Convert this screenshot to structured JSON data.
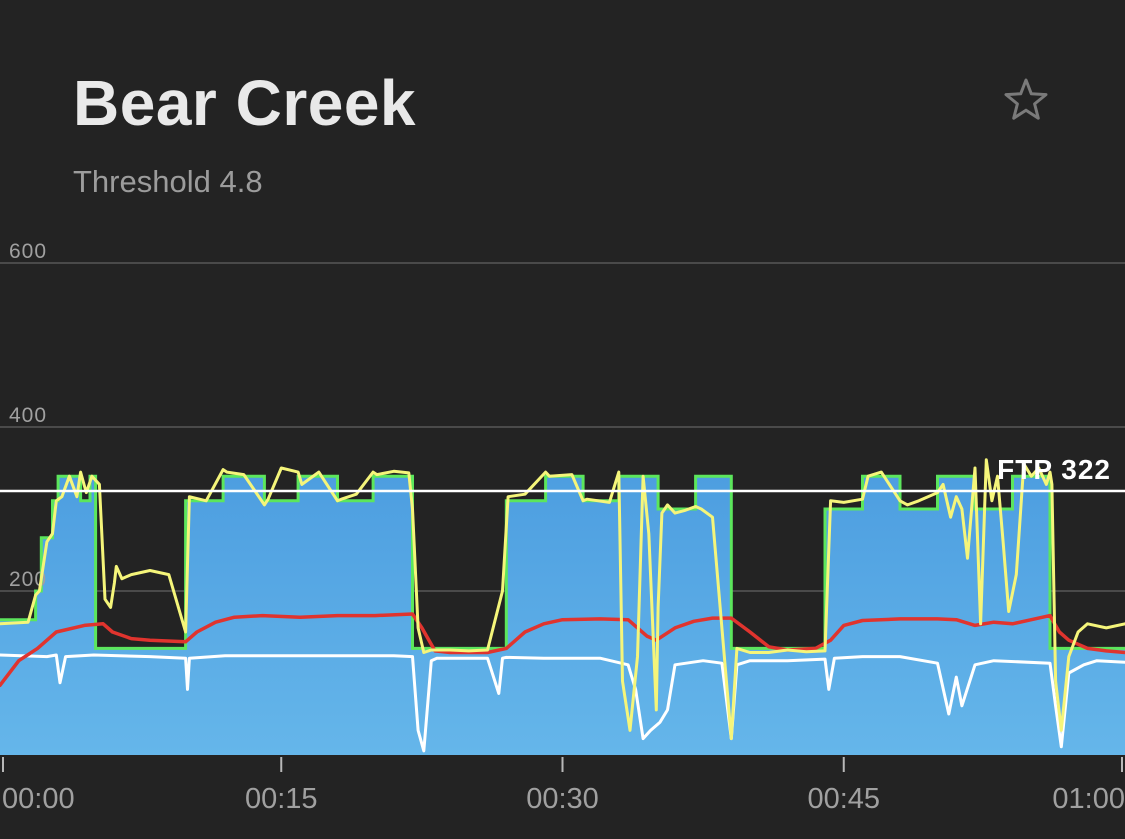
{
  "workout": {
    "title": "Bear Creek",
    "subtitle": "Threshold 4.8"
  },
  "icons": {
    "favorite": "star-outline-icon"
  },
  "colors": {
    "background": "#232323",
    "target_fill": "#5aa8e4",
    "target_outline": "#5ce65c",
    "power": "#f5f57a",
    "heart_rate": "#e0342e",
    "cadence": "#ffffff",
    "ftp_line": "#ffffff",
    "gridline": "#4a4a4a",
    "tick_label": "#a0a0a0"
  },
  "chart_data": {
    "type": "line",
    "x_unit": "minutes",
    "xlim": [
      0,
      60
    ],
    "ylim": [
      0,
      600
    ],
    "y_ticks": [
      {
        "value": 200,
        "label": "200"
      },
      {
        "value": 400,
        "label": "400"
      },
      {
        "value": 600,
        "label": "600"
      }
    ],
    "x_ticks": [
      {
        "value": 0,
        "label": "00:00"
      },
      {
        "value": 15,
        "label": "00:15"
      },
      {
        "value": 30,
        "label": "00:30"
      },
      {
        "value": 45,
        "label": "00:45"
      },
      {
        "value": 60,
        "label": "01:00"
      }
    ],
    "grid": true,
    "ftp": {
      "value": 322,
      "label": "FTP 322"
    },
    "target_power": {
      "x": [
        0,
        1.9,
        1.9,
        2.2,
        2.2,
        2.8,
        2.8,
        3.1,
        3.1,
        4.3,
        4.3,
        4.8,
        4.8,
        5.1,
        5.1,
        6.0,
        6.0,
        9.9,
        9.9,
        11.9,
        11.9,
        14.1,
        14.1,
        15.9,
        15.9,
        18.0,
        18.0,
        19.9,
        19.9,
        22.0,
        22.0,
        27.0,
        27.0,
        29.1,
        29.1,
        31.1,
        31.1,
        33.0,
        33.0,
        35.0,
        35.0,
        35.1,
        35.1,
        37.1,
        37.1,
        39.0,
        39.0,
        44.0,
        44.0,
        46.0,
        46.0,
        48.0,
        48.0,
        50.0,
        50.0,
        52.0,
        52.0,
        54.0,
        54.0,
        56.0,
        56.0,
        60.0
      ],
      "y": [
        165,
        165,
        200,
        200,
        265,
        265,
        310,
        310,
        340,
        340,
        310,
        310,
        340,
        340,
        130,
        130,
        130,
        130,
        310,
        310,
        340,
        340,
        310,
        310,
        340,
        340,
        310,
        310,
        340,
        340,
        130,
        130,
        310,
        310,
        340,
        340,
        310,
        310,
        340,
        340,
        340,
        340,
        300,
        300,
        340,
        340,
        130,
        130,
        300,
        300,
        340,
        340,
        300,
        300,
        340,
        340,
        300,
        300,
        340,
        340,
        130,
        130
      ]
    },
    "series": [
      {
        "name": "power",
        "x": [
          0,
          1.5,
          1.9,
          2.1,
          2.5,
          2.8,
          3.0,
          3.3,
          3.7,
          4.1,
          4.3,
          4.6,
          4.9,
          5.3,
          5.6,
          5.9,
          6.1,
          6.2,
          6.5,
          7.0,
          8.0,
          9.0,
          9.9,
          10.1,
          11.0,
          11.9,
          12.1,
          13.0,
          14.1,
          14.3,
          15.0,
          15.9,
          16.1,
          17.0,
          18.0,
          18.2,
          19.0,
          19.9,
          20.1,
          21.0,
          21.8,
          22.0,
          22.3,
          22.6,
          23.0,
          24.0,
          25.0,
          26.0,
          26.8,
          27.1,
          28.0,
          29.1,
          29.3,
          30.5,
          31.1,
          31.3,
          32.5,
          33.0,
          33.2,
          33.6,
          34.0,
          34.3,
          34.6,
          35.0,
          35.1,
          35.3,
          35.6,
          36.0,
          36.5,
          37.1,
          37.4,
          38.0,
          39.0,
          39.3,
          40.0,
          41.0,
          42.0,
          43.0,
          44.0,
          44.3,
          45.0,
          46.0,
          46.3,
          47.0,
          48.0,
          48.4,
          49.0,
          50.0,
          50.3,
          50.7,
          51.0,
          51.3,
          51.6,
          52.0,
          52.3,
          52.6,
          52.9,
          53.2,
          53.5,
          53.8,
          54.2,
          54.6,
          55.0,
          55.4,
          55.8,
          56.0,
          56.1,
          56.3,
          56.6,
          57.0,
          57.5,
          58.0,
          59.0,
          60.0
        ],
        "y": [
          160,
          162,
          195,
          200,
          260,
          270,
          310,
          315,
          340,
          315,
          345,
          320,
          340,
          330,
          190,
          180,
          210,
          230,
          215,
          220,
          225,
          220,
          150,
          315,
          310,
          348,
          345,
          342,
          305,
          312,
          350,
          345,
          330,
          345,
          310,
          312,
          318,
          345,
          342,
          346,
          344,
          300,
          155,
          125,
          128,
          128,
          127,
          128,
          200,
          315,
          318,
          345,
          340,
          342,
          310,
          312,
          308,
          345,
          90,
          30,
          120,
          340,
          270,
          55,
          180,
          295,
          305,
          295,
          298,
          303,
          300,
          290,
          20,
          130,
          125,
          125,
          128,
          126,
          127,
          310,
          308,
          312,
          340,
          345,
          310,
          305,
          310,
          320,
          330,
          290,
          315,
          300,
          240,
          350,
          160,
          360,
          310,
          340,
          260,
          175,
          220,
          355,
          340,
          350,
          330,
          345,
          330,
          90,
          30,
          120,
          150,
          160,
          155,
          160
        ]
      },
      {
        "name": "heart_rate",
        "x": [
          0,
          1.0,
          2.0,
          3.0,
          4.5,
          5.5,
          6.0,
          7.0,
          8.0,
          9.9,
          10.5,
          11.5,
          12.5,
          14.0,
          16.0,
          18.0,
          20.0,
          22.0,
          22.5,
          23.2,
          24.0,
          26.0,
          27.0,
          28.0,
          29.0,
          30.0,
          32.0,
          33.5,
          34.5,
          35.0,
          36.0,
          37.0,
          38.0,
          39.0,
          40.0,
          41.0,
          42.0,
          43.5,
          44.3,
          45.0,
          46.0,
          48.0,
          50.0,
          51.0,
          52.0,
          53.0,
          54.0,
          55.0,
          56.0,
          56.5,
          57.0,
          58.0,
          59.0,
          60.0
        ],
        "y": [
          85,
          115,
          130,
          150,
          158,
          160,
          150,
          142,
          140,
          138,
          150,
          162,
          168,
          170,
          168,
          170,
          170,
          172,
          155,
          127,
          125,
          125,
          130,
          150,
          160,
          165,
          166,
          165,
          145,
          140,
          155,
          163,
          167,
          167,
          150,
          132,
          128,
          130,
          140,
          158,
          164,
          166,
          166,
          165,
          158,
          162,
          160,
          165,
          170,
          150,
          140,
          130,
          127,
          125
        ]
      },
      {
        "name": "cadence",
        "x": [
          0,
          2.5,
          3.0,
          3.2,
          3.5,
          5.0,
          8.0,
          9.9,
          10.0,
          10.1,
          12.0,
          15.0,
          18.0,
          21.0,
          22.0,
          22.3,
          22.6,
          23.0,
          23.3,
          24.0,
          26.0,
          26.6,
          26.8,
          27.0,
          29.0,
          32.0,
          33.5,
          33.9,
          34.3,
          34.7,
          35.2,
          35.6,
          36.0,
          37.5,
          38.5,
          39.0,
          39.3,
          40.0,
          42.0,
          44.0,
          44.2,
          44.5,
          46.0,
          48.0,
          50.0,
          50.6,
          51.0,
          51.3,
          52.0,
          53.0,
          56.0,
          56.3,
          56.6,
          57.0,
          57.8,
          58.5,
          60.0
        ],
        "y": [
          122,
          120,
          122,
          88,
          120,
          122,
          120,
          118,
          80,
          118,
          121,
          121,
          121,
          121,
          120,
          30,
          5,
          115,
          118,
          118,
          118,
          75,
          118,
          119,
          118,
          118,
          110,
          80,
          20,
          30,
          40,
          55,
          110,
          115,
          112,
          20,
          110,
          115,
          115,
          117,
          80,
          118,
          120,
          120,
          112,
          50,
          95,
          60,
          110,
          115,
          112,
          60,
          10,
          100,
          110,
          115,
          113
        ]
      }
    ]
  }
}
